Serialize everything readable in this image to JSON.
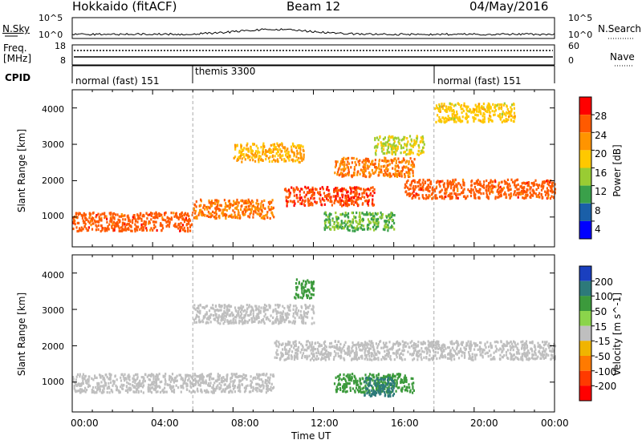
{
  "header": {
    "title": "Hokkaido (fitACF)",
    "beam": "Beam 12",
    "date": "04/May/2016"
  },
  "summary": {
    "nsky_label": "N.Sky",
    "nsearch_label": "N.Search",
    "freq_label_1": "Freq.",
    "freq_label_2": "[MHz]",
    "nave_label": "Nave",
    "cpid_label": "CPID",
    "nsky_ticks": [
      "10^5",
      "10^0"
    ],
    "nsearch_ticks": [
      "10^5",
      "10^0"
    ],
    "freq_ticks": [
      "18",
      "8"
    ],
    "nave_ticks": [
      "60",
      "0"
    ],
    "cpid_segments": [
      {
        "label": "normal (fast) 151",
        "start": 0,
        "end": 6
      },
      {
        "label": "themis 3300",
        "start": 6,
        "end": 18
      },
      {
        "label": "normal (fast) 151",
        "start": 18,
        "end": 24
      }
    ]
  },
  "panels": {
    "power": {
      "ylabel": "Slant Range [km]",
      "cbar_label": "Power [dB]",
      "cbar_ticks": [
        "28",
        "24",
        "20",
        "16",
        "12",
        "8",
        "4"
      ],
      "cbar_colors": [
        "#ff0000",
        "#ff5a00",
        "#ff9400",
        "#ffc800",
        "#99cc33",
        "#3aa04a",
        "#1a5fa8",
        "#0000ff"
      ]
    },
    "velocity": {
      "ylabel": "Slant Range [km]",
      "cbar_label": "Velocity [m s^-1]",
      "cbar_ticks": [
        "200",
        "100",
        "50",
        "15",
        "-15",
        "-50",
        "-100",
        "-200"
      ],
      "cbar_colors": [
        "#1a3fbf",
        "#2d7a7a",
        "#3c9a3c",
        "#8bd44b",
        "#bfbfbf",
        "#f0b400",
        "#ff7a00",
        "#ff3a00",
        "#ff0000"
      ]
    }
  },
  "xaxis": {
    "label": "Time UT",
    "ticks": [
      "00:00",
      "04:00",
      "08:00",
      "12:00",
      "16:00",
      "20:00",
      "00:00"
    ]
  },
  "yaxis": {
    "ticks": [
      "1000",
      "2000",
      "3000",
      "4000"
    ]
  },
  "chart_data": [
    {
      "type": "heatmap",
      "title": "Power",
      "ylabel": "Slant Range [km]",
      "xlabel": "Time UT",
      "xlim_hours": [
        0,
        24
      ],
      "ylim": [
        180,
        4500
      ],
      "colorbar": "Power [dB]",
      "colorbar_range": [
        0,
        30
      ],
      "regions": [
        {
          "t_start": 0.0,
          "t_end": 6.0,
          "range_center": 900,
          "value": 26
        },
        {
          "t_start": 6.0,
          "t_end": 10.0,
          "range_center": 1250,
          "value": 24
        },
        {
          "t_start": 8.0,
          "t_end": 11.5,
          "range_center": 2800,
          "value": 20
        },
        {
          "t_start": 10.5,
          "t_end": 15.0,
          "range_center": 1600,
          "value": 27
        },
        {
          "t_start": 13.0,
          "t_end": 17.0,
          "range_center": 2400,
          "value": 24
        },
        {
          "t_start": 15.0,
          "t_end": 17.5,
          "range_center": 3000,
          "value": 16
        },
        {
          "t_start": 12.5,
          "t_end": 16.0,
          "range_center": 900,
          "value": 12
        },
        {
          "t_start": 16.5,
          "t_end": 24.0,
          "range_center": 1800,
          "value": 26
        },
        {
          "t_start": 18.0,
          "t_end": 22.0,
          "range_center": 3900,
          "value": 18
        }
      ]
    },
    {
      "type": "heatmap",
      "title": "Velocity",
      "ylabel": "Slant Range [km]",
      "xlabel": "Time UT",
      "xlim_hours": [
        0,
        24
      ],
      "ylim": [
        180,
        4500
      ],
      "colorbar": "Velocity [m s^-1]",
      "colorbar_range": [
        -200,
        200
      ],
      "regions": [
        {
          "t_start": 0.0,
          "t_end": 10.0,
          "range_center": 1000,
          "value": 0
        },
        {
          "t_start": 6.0,
          "t_end": 12.0,
          "range_center": 2900,
          "value": 0
        },
        {
          "t_start": 10.0,
          "t_end": 24.0,
          "range_center": 1900,
          "value": 0
        },
        {
          "t_start": 11.0,
          "t_end": 12.0,
          "range_center": 3600,
          "value": 60
        },
        {
          "t_start": 13.0,
          "t_end": 17.0,
          "range_center": 1000,
          "value": 60
        },
        {
          "t_start": 14.5,
          "t_end": 16.0,
          "range_center": 900,
          "value": 180
        }
      ]
    }
  ]
}
